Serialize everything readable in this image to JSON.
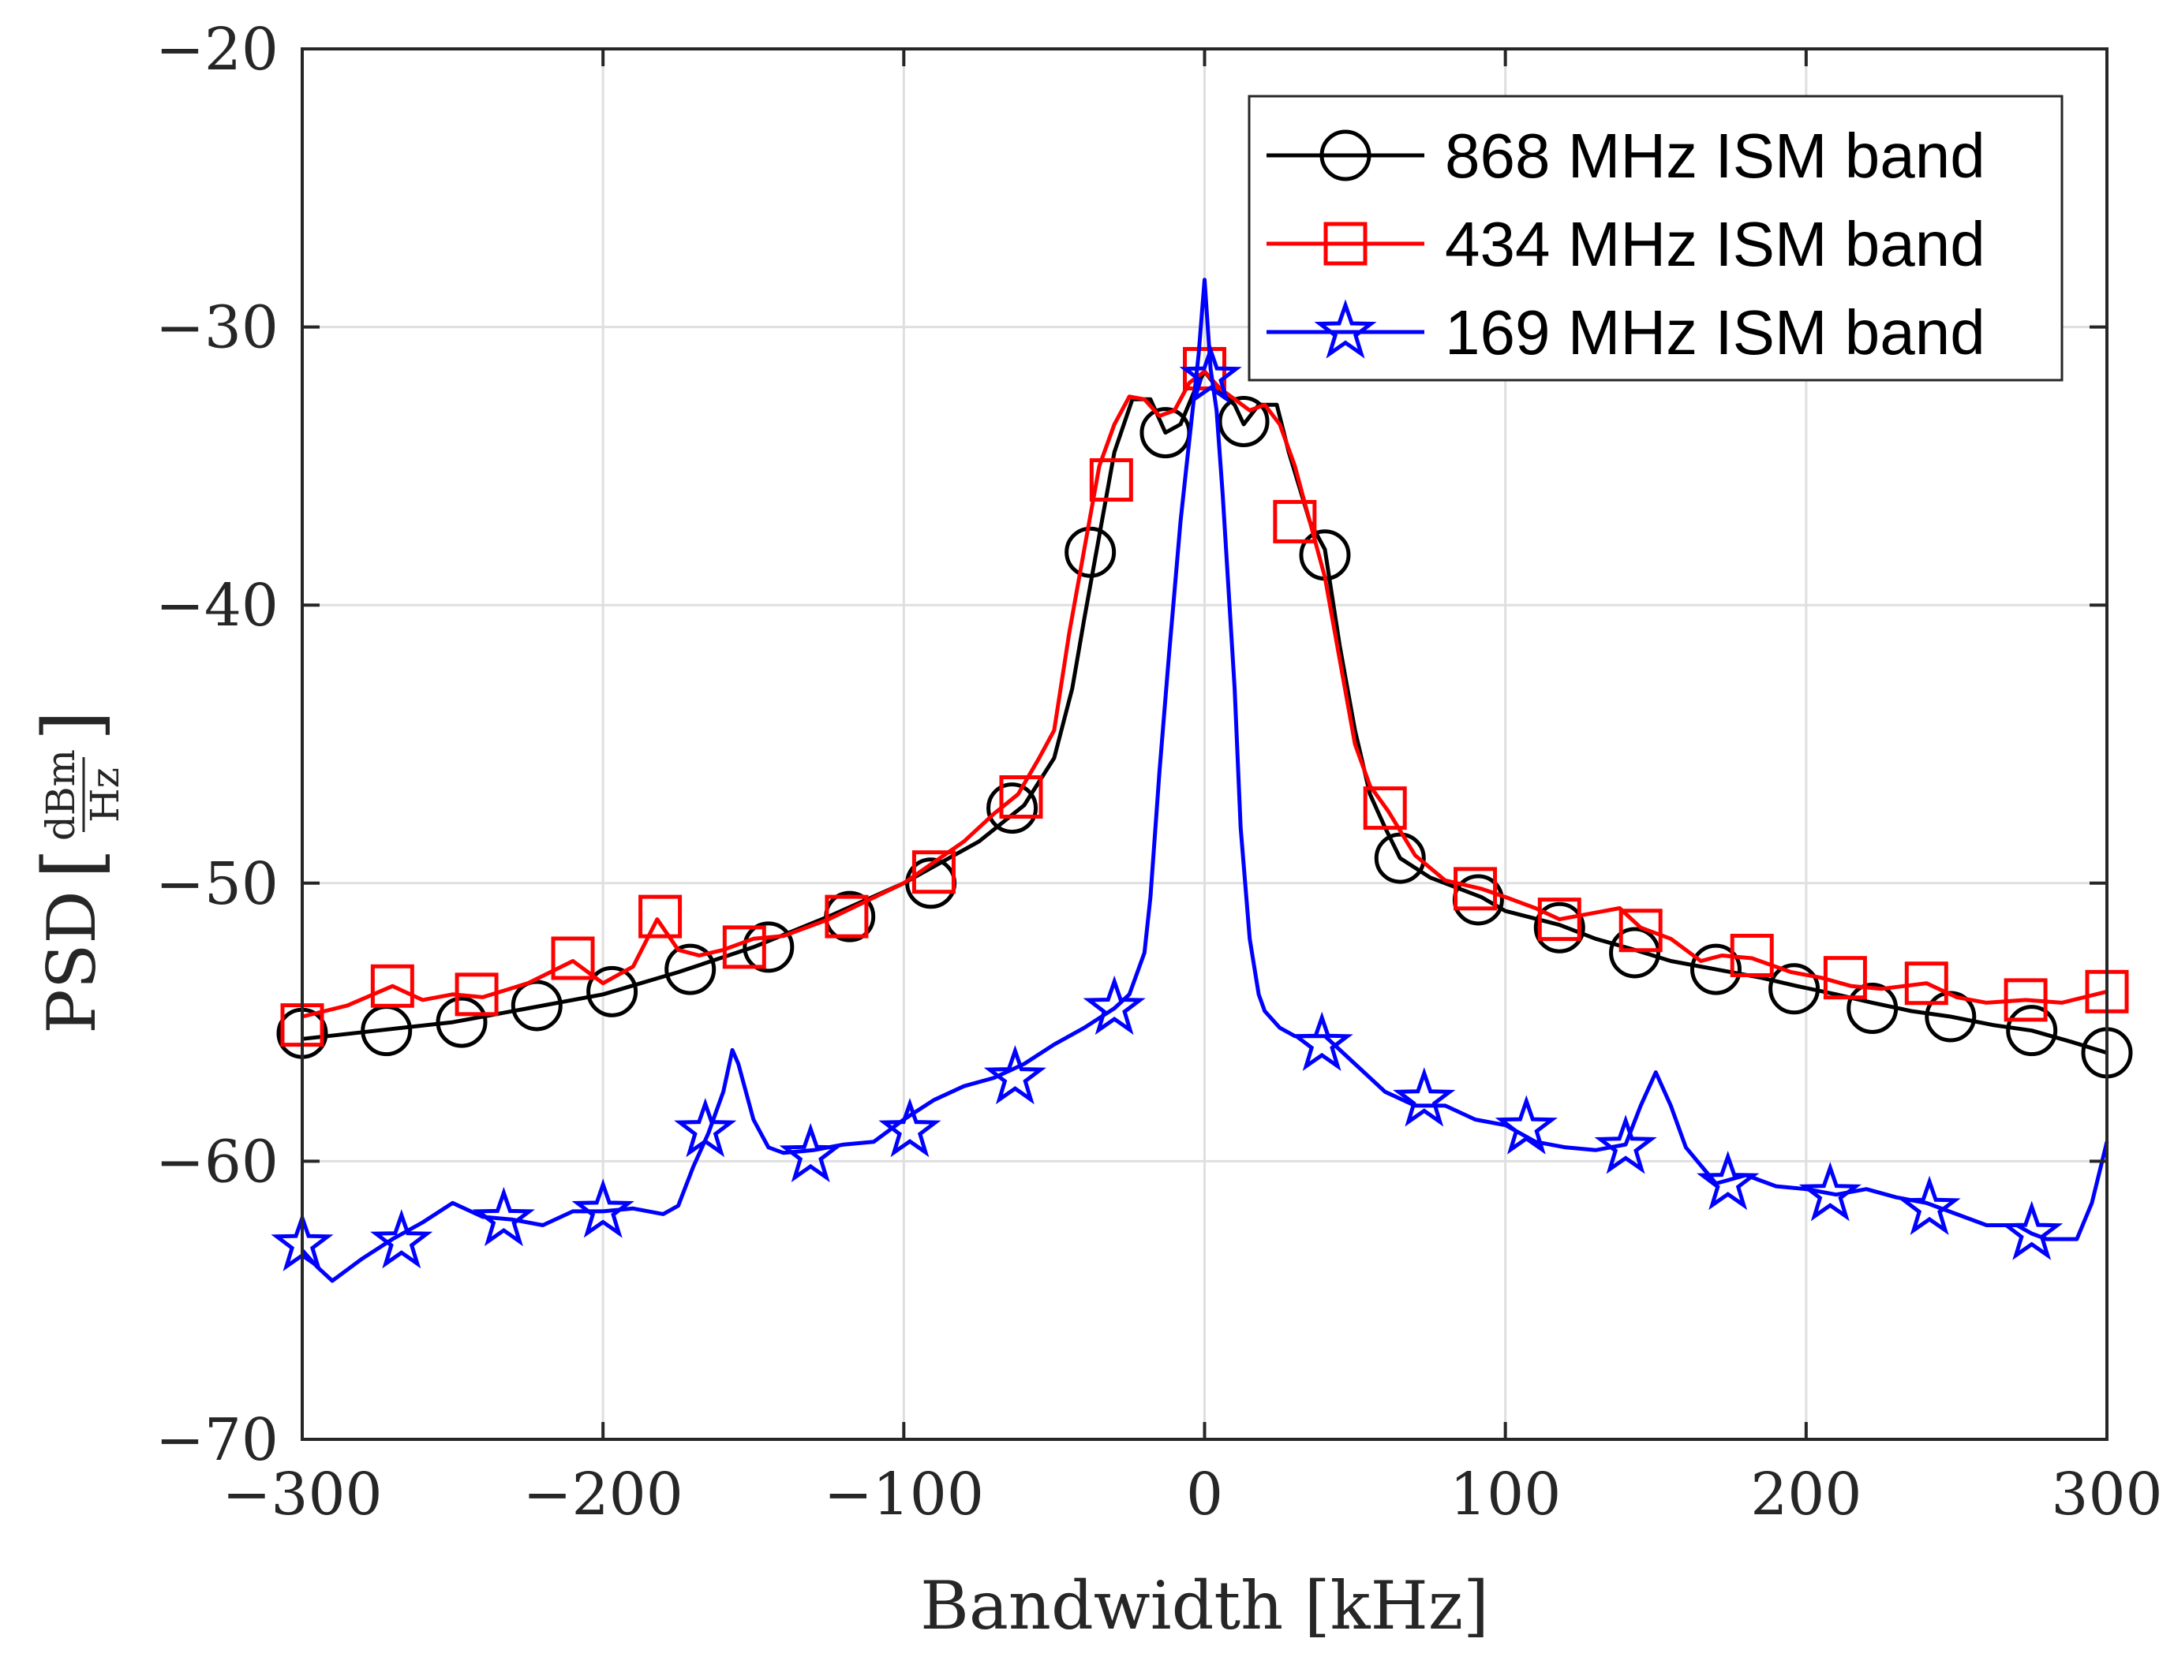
{
  "chart_data": {
    "type": "line",
    "title": "",
    "xlabel": "Bandwidth [kHz]",
    "ylabel": {
      "prefix": "PSD",
      "numerator": "dBm",
      "denominator": "Hz"
    },
    "xlim": [
      -300,
      300
    ],
    "ylim": [
      -70,
      -20
    ],
    "grid": true,
    "legend_position": "top-right",
    "x_ticks": [
      -300,
      -200,
      -100,
      0,
      100,
      200,
      300
    ],
    "x_tick_labels": [
      "−300",
      "−200",
      "−100",
      "0",
      "100",
      "200",
      "300"
    ],
    "y_ticks": [
      -70,
      -60,
      -50,
      -40,
      -30,
      -20
    ],
    "y_tick_labels": [
      "−70",
      "−60",
      "−50",
      "−40",
      "−30",
      "−20"
    ],
    "series": [
      {
        "name": "868 MHz ISM band",
        "color": "#000000",
        "marker": "circle",
        "x": [
          -300,
          -275,
          -250,
          -225,
          -200,
          -175,
          -150,
          -125,
          -100,
          -75,
          -60,
          -50,
          -44,
          -40,
          -35,
          -30,
          -24,
          -18,
          -13,
          -8,
          -3,
          0,
          5,
          10,
          13,
          18,
          24,
          28,
          35,
          40,
          45,
          50,
          55,
          60,
          65,
          75,
          92,
          100,
          118,
          130,
          143,
          155,
          170,
          185,
          197,
          210,
          222,
          235,
          248,
          262,
          275,
          288,
          300
        ],
        "y": [
          -55.6,
          -55.3,
          -55.0,
          -54.5,
          -54.0,
          -53.2,
          -52.3,
          -51.2,
          -50.0,
          -48.5,
          -47.2,
          -45.5,
          -43.0,
          -40.5,
          -37.5,
          -34.5,
          -32.6,
          -32.6,
          -33.8,
          -33.5,
          -32.2,
          -31.6,
          -32.3,
          -32.8,
          -33.5,
          -32.8,
          -32.8,
          -34.5,
          -37.0,
          -38.0,
          -41.5,
          -44.5,
          -46.8,
          -48.0,
          -49.1,
          -49.8,
          -50.5,
          -51.0,
          -51.5,
          -52.0,
          -52.4,
          -52.8,
          -53.1,
          -53.4,
          -53.7,
          -54.0,
          -54.3,
          -54.6,
          -54.8,
          -55.1,
          -55.3,
          -55.7,
          -56.1
        ],
        "marker_x": [
          -300,
          -272,
          -247,
          -222,
          -197,
          -171,
          -145,
          -118,
          -91,
          -64,
          -38,
          -13,
          13,
          40,
          65,
          91,
          118,
          143,
          170,
          196,
          222,
          248,
          275,
          300
        ],
        "marker_y": [
          -55.4,
          -55.3,
          -55.0,
          -54.4,
          -53.9,
          -53.1,
          -52.3,
          -51.2,
          -50.0,
          -47.3,
          -38.1,
          -33.8,
          -33.4,
          -38.2,
          -49.1,
          -50.6,
          -51.6,
          -52.5,
          -53.1,
          -53.8,
          -54.5,
          -54.8,
          -55.3,
          -56.1
        ]
      },
      {
        "name": "434 MHz ISM band",
        "color": "#ff0000",
        "marker": "square",
        "x": [
          -300,
          -285,
          -270,
          -260,
          -250,
          -240,
          -225,
          -210,
          -200,
          -190,
          -182,
          -175,
          -168,
          -160,
          -150,
          -140,
          -125,
          -100,
          -80,
          -70,
          -62,
          -55,
          -50,
          -45,
          -40,
          -35,
          -30,
          -25,
          -20,
          -15,
          -10,
          -5,
          0,
          5,
          10,
          15,
          20,
          25,
          30,
          35,
          40,
          45,
          50,
          55,
          61,
          70,
          80,
          92,
          100,
          110,
          118,
          128,
          138,
          145,
          155,
          165,
          172,
          182,
          195,
          205,
          215,
          225,
          240,
          250,
          260,
          273,
          285,
          300
        ],
        "y": [
          -54.8,
          -54.4,
          -53.7,
          -54.2,
          -54.0,
          -54.1,
          -53.6,
          -52.8,
          -53.6,
          -53.0,
          -51.3,
          -52.4,
          -52.6,
          -52.4,
          -52.0,
          -51.9,
          -51.3,
          -50.0,
          -48.5,
          -47.5,
          -46.8,
          -45.5,
          -44.5,
          -41.0,
          -38.0,
          -35.0,
          -33.5,
          -32.5,
          -32.6,
          -33.2,
          -33.0,
          -32.0,
          -31.6,
          -32.2,
          -32.6,
          -33.0,
          -32.8,
          -33.5,
          -35.0,
          -37.0,
          -39.0,
          -42.0,
          -45.0,
          -46.5,
          -47.4,
          -49.0,
          -49.9,
          -50.2,
          -50.5,
          -50.9,
          -51.3,
          -51.1,
          -50.9,
          -51.6,
          -52.0,
          -52.8,
          -52.6,
          -52.7,
          -53.2,
          -53.4,
          -53.7,
          -53.8,
          -53.6,
          -54.1,
          -54.3,
          -54.2,
          -54.3,
          -53.9
        ],
        "marker_x": [
          -300,
          -270,
          -242,
          -210,
          -181,
          -153,
          -119,
          -90,
          -61,
          -31,
          0,
          30,
          60,
          90,
          118,
          145,
          182,
          213,
          240,
          273,
          300
        ],
        "marker_y": [
          -55.1,
          -53.7,
          -54.0,
          -52.7,
          -51.2,
          -52.3,
          -51.2,
          -49.6,
          -46.9,
          -35.5,
          -31.5,
          -37.0,
          -47.3,
          -50.2,
          -51.3,
          -51.7,
          -52.6,
          -53.4,
          -53.6,
          -54.2,
          -53.9
        ]
      },
      {
        "name": "169 MHz ISM band",
        "color": "#0000ff",
        "marker": "pentagram",
        "x": [
          -300,
          -295,
          -290,
          -280,
          -270,
          -260,
          -250,
          -240,
          -230,
          -220,
          -210,
          -200,
          -190,
          -180,
          -175,
          -170,
          -165,
          -160,
          -157,
          -155,
          -150,
          -145,
          -140,
          -130,
          -120,
          -110,
          -100,
          -90,
          -80,
          -70,
          -60,
          -50,
          -40,
          -30,
          -25,
          -20,
          -18,
          -15,
          -12,
          -10,
          -8,
          -6,
          -4,
          -2,
          0,
          2,
          4,
          6,
          8,
          10,
          12,
          15,
          18,
          20,
          25,
          30,
          40,
          50,
          60,
          70,
          80,
          90,
          100,
          110,
          120,
          130,
          140,
          145,
          150,
          155,
          160,
          170,
          180,
          190,
          200,
          210,
          220,
          230,
          240,
          250,
          260,
          270,
          275,
          280,
          290,
          295,
          300
        ],
        "y": [
          -63.2,
          -63.8,
          -64.3,
          -63.5,
          -62.8,
          -62.2,
          -61.5,
          -62.0,
          -62.1,
          -62.3,
          -61.8,
          -61.8,
          -61.7,
          -61.9,
          -61.6,
          -60.2,
          -59.0,
          -57.5,
          -56.0,
          -56.5,
          -58.5,
          -59.5,
          -59.7,
          -59.6,
          -59.4,
          -59.3,
          -58.5,
          -57.8,
          -57.3,
          -57.0,
          -56.5,
          -55.8,
          -55.2,
          -54.5,
          -54.0,
          -52.5,
          -50.5,
          -46.0,
          -42.0,
          -39.5,
          -37.0,
          -35.0,
          -33.0,
          -31.0,
          -28.3,
          -31.5,
          -33.0,
          -36.0,
          -39.5,
          -43.0,
          -48.0,
          -52.0,
          -54.0,
          -54.6,
          -55.2,
          -55.5,
          -55.5,
          -56.5,
          -57.5,
          -58.0,
          -58.0,
          -58.5,
          -58.7,
          -59.3,
          -59.5,
          -59.6,
          -59.4,
          -58.0,
          -56.8,
          -58.0,
          -59.5,
          -60.8,
          -60.5,
          -60.9,
          -61.0,
          -61.2,
          -61.0,
          -61.3,
          -61.5,
          -61.9,
          -62.3,
          -62.3,
          -62.6,
          -62.8,
          -62.8,
          -61.5,
          -59.3
        ],
        "marker_x": [
          -300,
          -267,
          -233,
          -200,
          -166,
          -131,
          -98,
          -63,
          -30,
          2,
          39,
          73,
          107,
          140,
          174,
          208,
          241,
          275
        ],
        "marker_y": [
          -63.0,
          -62.9,
          -62.1,
          -61.8,
          -58.9,
          -59.8,
          -58.9,
          -57.0,
          -54.5,
          -31.8,
          -55.8,
          -57.8,
          -58.8,
          -59.5,
          -60.8,
          -61.2,
          -61.7,
          -62.6
        ]
      }
    ]
  }
}
